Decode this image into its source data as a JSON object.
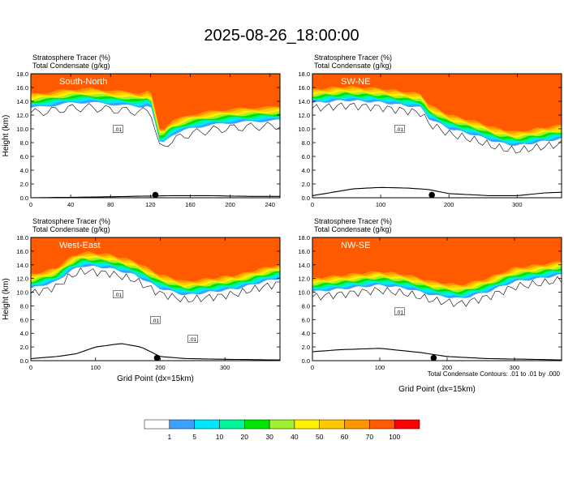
{
  "title": "2025-08-26_18:00:00",
  "footnote": "Total Condensate Contours: .01 to .01 by .000",
  "colorbar": {
    "labels": [
      "1",
      "5",
      "10",
      "20",
      "30",
      "40",
      "50",
      "60",
      "70",
      "100"
    ],
    "colors": [
      "#ffffff",
      "#3ca0ff",
      "#00e6ff",
      "#00f59a",
      "#00e600",
      "#a0f032",
      "#fff000",
      "#ffc800",
      "#ff9600",
      "#ff5a00",
      "#ff0000"
    ]
  },
  "chart_data": [
    {
      "type": "heatmap",
      "panel": "South-North",
      "subtitle_lines": [
        "Stratosphere Tracer   (%)",
        "Total Condensate    (g/kg)"
      ],
      "xlabel": "",
      "ylabel": "Height (km)",
      "xlim": [
        0,
        250
      ],
      "ylim": [
        0,
        18
      ],
      "xticks": [
        0,
        40,
        80,
        120,
        160,
        200,
        240
      ],
      "yticks": [
        "0.0",
        "2.0",
        "4.0",
        "6.0",
        "8.0",
        "10.0",
        "12.0",
        "14.0",
        "16.0",
        "18.0"
      ],
      "tracer_base_km": [
        [
          0,
          13.5
        ],
        [
          20,
          13.8
        ],
        [
          40,
          14.2
        ],
        [
          60,
          14.3
        ],
        [
          80,
          14.0
        ],
        [
          100,
          13.8
        ],
        [
          110,
          13.6
        ],
        [
          120,
          14.0
        ],
        [
          125,
          11.0
        ],
        [
          130,
          8.0
        ],
        [
          140,
          9.5
        ],
        [
          160,
          10.5
        ],
        [
          180,
          11.0
        ],
        [
          200,
          11.3
        ],
        [
          220,
          11.5
        ],
        [
          240,
          11.6
        ],
        [
          250,
          11.7
        ]
      ],
      "terrain_km": [
        [
          0,
          0.0
        ],
        [
          60,
          0.1
        ],
        [
          100,
          0.2
        ],
        [
          140,
          0.3
        ],
        [
          180,
          0.3
        ],
        [
          220,
          0.2
        ],
        [
          250,
          0.2
        ]
      ],
      "contour_labels": [
        ".01"
      ],
      "marker_x": 125
    },
    {
      "type": "heatmap",
      "panel": "SW-NE",
      "subtitle_lines": [
        "Stratosphere Tracer   (%)",
        "Total Condensate    (g/kg)"
      ],
      "xlabel": "",
      "ylabel": "",
      "xlim": [
        0,
        365
      ],
      "ylim": [
        0,
        18
      ],
      "xticks": [
        0,
        100,
        200,
        300
      ],
      "yticks": [
        "0.0",
        "2.0",
        "4.0",
        "6.0",
        "8.0",
        "10.0",
        "12.0",
        "14.0",
        "16.0",
        "18.0"
      ],
      "tracer_base_km": [
        [
          0,
          14.2
        ],
        [
          50,
          14.6
        ],
        [
          100,
          14.3
        ],
        [
          140,
          13.8
        ],
        [
          160,
          13.5
        ],
        [
          170,
          12.0
        ],
        [
          200,
          10.5
        ],
        [
          240,
          9.5
        ],
        [
          270,
          8.5
        ],
        [
          300,
          8.0
        ],
        [
          330,
          8.5
        ],
        [
          365,
          9.0
        ]
      ],
      "terrain_km": [
        [
          0,
          0.3
        ],
        [
          60,
          1.3
        ],
        [
          100,
          1.5
        ],
        [
          140,
          1.4
        ],
        [
          170,
          1.2
        ],
        [
          200,
          0.6
        ],
        [
          260,
          0.3
        ],
        [
          300,
          0.3
        ],
        [
          340,
          0.7
        ],
        [
          365,
          0.8
        ]
      ],
      "contour_labels": [
        ".01"
      ],
      "marker_x": 175
    },
    {
      "type": "heatmap",
      "panel": "West-East",
      "subtitle_lines": [
        "Stratosphere Tracer   (%)",
        "Total Condensate    (g/kg)"
      ],
      "xlabel": "Grid Point (dx=15km)",
      "ylabel": "Height (km)",
      "xlim": [
        0,
        385
      ],
      "ylim": [
        0,
        18
      ],
      "xticks": [
        0,
        100,
        200,
        300
      ],
      "yticks": [
        "0.0",
        "2.0",
        "4.0",
        "6.0",
        "8.0",
        "10.0",
        "12.0",
        "14.0",
        "16.0",
        "18.0"
      ],
      "tracer_base_km": [
        [
          0,
          11.0
        ],
        [
          20,
          11.5
        ],
        [
          40,
          12.0
        ],
        [
          60,
          13.5
        ],
        [
          80,
          14.3
        ],
        [
          120,
          14.0
        ],
        [
          160,
          13.0
        ],
        [
          200,
          11.0
        ],
        [
          240,
          10.0
        ],
        [
          280,
          10.5
        ],
        [
          320,
          11.0
        ],
        [
          360,
          12.0
        ],
        [
          385,
          12.5
        ]
      ],
      "terrain_km": [
        [
          0,
          0.3
        ],
        [
          40,
          0.6
        ],
        [
          70,
          1.0
        ],
        [
          100,
          2.0
        ],
        [
          140,
          2.5
        ],
        [
          170,
          2.0
        ],
        [
          200,
          0.6
        ],
        [
          240,
          0.3
        ],
        [
          300,
          0.2
        ],
        [
          385,
          0.1
        ]
      ],
      "contour_labels": [
        ".01",
        ".01",
        ".01"
      ],
      "marker_x": 195
    },
    {
      "type": "heatmap",
      "panel": "NW-SE",
      "subtitle_lines": [
        "Stratosphere Tracer   (%)",
        "Total Condensate    (g/kg)"
      ],
      "xlabel": "Grid Point (dx=15km)",
      "ylabel": "",
      "xlim": [
        0,
        370
      ],
      "ylim": [
        0,
        18
      ],
      "xticks": [
        0,
        100,
        200,
        300
      ],
      "yticks": [
        "0.0",
        "2.0",
        "4.0",
        "6.0",
        "8.0",
        "10.0",
        "12.0",
        "14.0",
        "16.0",
        "18.0"
      ],
      "tracer_base_km": [
        [
          0,
          10.5
        ],
        [
          50,
          11.0
        ],
        [
          100,
          11.5
        ],
        [
          140,
          11.0
        ],
        [
          180,
          10.0
        ],
        [
          220,
          9.5
        ],
        [
          260,
          10.5
        ],
        [
          300,
          12.0
        ],
        [
          340,
          12.5
        ],
        [
          370,
          13.0
        ]
      ],
      "terrain_km": [
        [
          0,
          1.3
        ],
        [
          40,
          1.6
        ],
        [
          100,
          1.8
        ],
        [
          160,
          1.2
        ],
        [
          200,
          0.6
        ],
        [
          260,
          0.3
        ],
        [
          320,
          0.2
        ],
        [
          370,
          0.1
        ]
      ],
      "contour_labels": [
        ".01"
      ],
      "marker_x": 180
    }
  ]
}
